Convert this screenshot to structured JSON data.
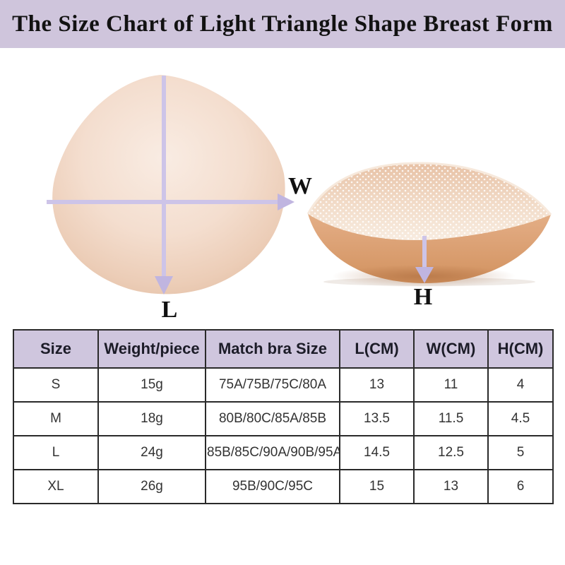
{
  "header": {
    "title": "The Size Chart of Light Triangle Shape Breast Form"
  },
  "diagram": {
    "length_label": "L",
    "width_label": "W",
    "height_label": "H"
  },
  "table": {
    "columns": [
      "Size",
      "Weight/piece",
      "Match bra Size",
      "L(CM)",
      "W(CM)",
      "H(CM)"
    ],
    "rows": [
      [
        "S",
        "15g",
        "75A/75B/75C/80A",
        "13",
        "11",
        "4"
      ],
      [
        "M",
        "18g",
        "80B/80C/85A/85B",
        "13.5",
        "11.5",
        "4.5"
      ],
      [
        "L",
        "24g",
        "85B/85C/90A/90B/95A",
        "14.5",
        "12.5",
        "5"
      ],
      [
        "XL",
        "26g",
        "95B/90C/95C",
        "15",
        "13",
        "6"
      ]
    ]
  },
  "colors": {
    "banner_bg": "#cfc5dc",
    "table_header_bg": "#cfc6de",
    "table_border": "#2a2a2a",
    "arrow_line": "#cdc4e8",
    "arrow_head": "#c0b5e0",
    "form_skin_light": "#f6e6da",
    "form_skin_edge": "#e3c0a6",
    "shell_tan": "#e0a87e",
    "mesh_light": "#f2dcc9"
  },
  "chart_data": {
    "type": "table",
    "title": "The Size Chart of Light Triangle Shape Breast Form",
    "columns": [
      "Size",
      "Weight/piece",
      "Match bra Size",
      "L(CM)",
      "W(CM)",
      "H(CM)"
    ],
    "rows": [
      [
        "S",
        "15g",
        "75A/75B/75C/80A",
        13,
        11,
        4
      ],
      [
        "M",
        "18g",
        "80B/80C/85A/85B",
        13.5,
        11.5,
        4.5
      ],
      [
        "L",
        "24g",
        "85B/85C/90A/90B/95A",
        14.5,
        12.5,
        5
      ],
      [
        "XL",
        "26g",
        "95B/90C/95C",
        15,
        13,
        6
      ]
    ],
    "notes": "Measurement arrows on product photos: L = vertical length of front view, W = horizontal width of front view, H = height/depth of side view"
  }
}
